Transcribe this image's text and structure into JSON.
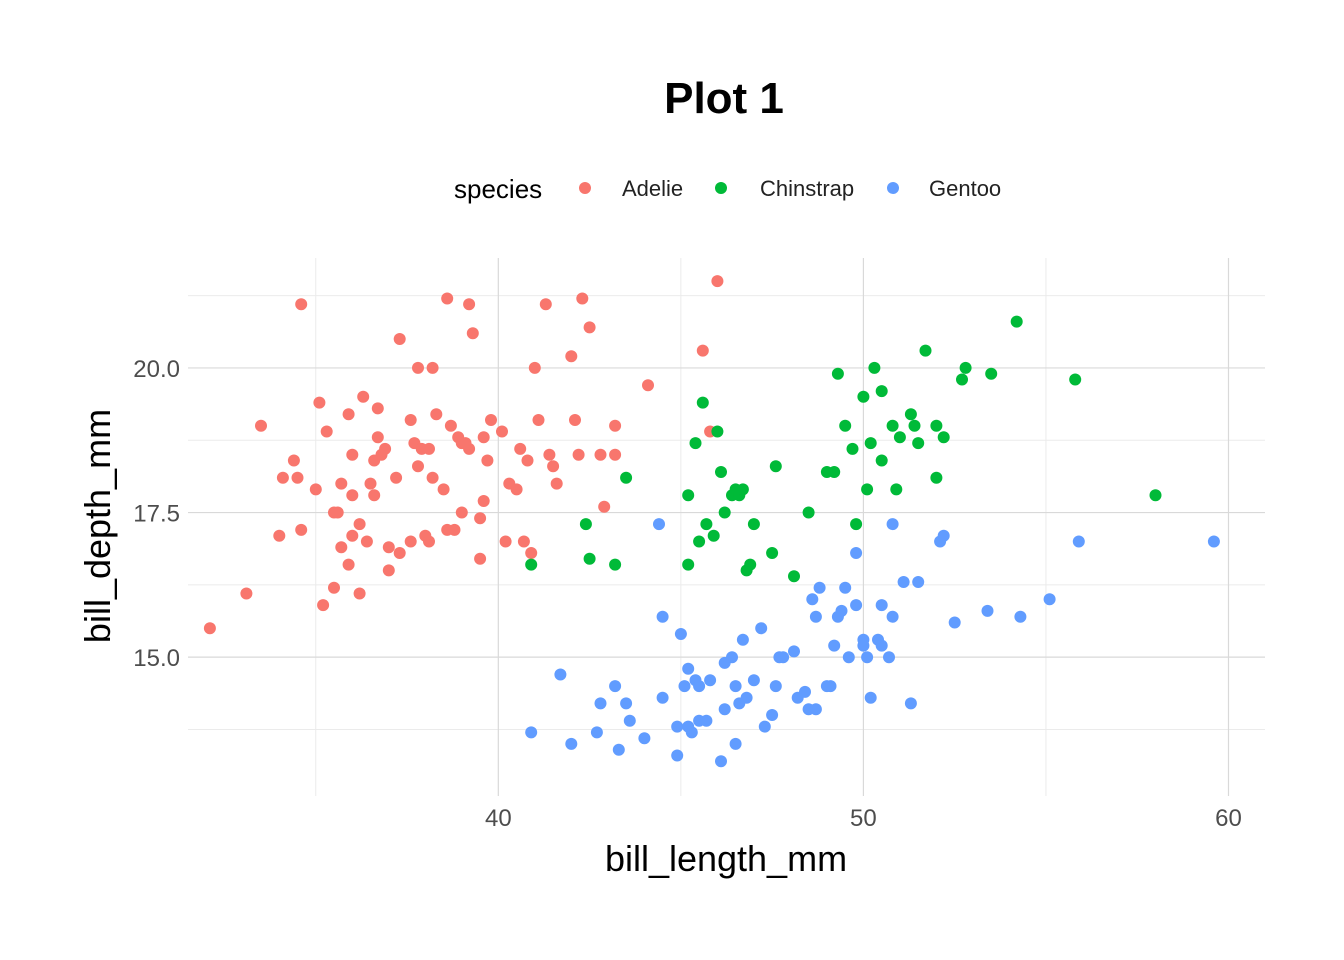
{
  "chart_data": {
    "type": "scatter",
    "title": "Plot 1",
    "xlabel": "bill_length_mm",
    "ylabel": "bill_depth_mm",
    "xlim": [
      31.5,
      61.0
    ],
    "ylim": [
      12.6,
      21.9
    ],
    "x_ticks": [
      40,
      50,
      60
    ],
    "y_ticks": [
      15.0,
      17.5,
      20.0
    ],
    "x_tick_labels": [
      "40",
      "50",
      "60"
    ],
    "y_tick_labels": [
      "15.0",
      "17.5",
      "20.0"
    ],
    "grid": true,
    "legend": {
      "title": "species",
      "position": "top"
    },
    "series": [
      {
        "name": "Adelie",
        "color": "#F8766D",
        "points": [
          [
            32.1,
            15.5
          ],
          [
            33.1,
            16.1
          ],
          [
            33.5,
            19.0
          ],
          [
            34.0,
            17.1
          ],
          [
            34.1,
            18.1
          ],
          [
            34.4,
            18.4
          ],
          [
            34.5,
            18.1
          ],
          [
            34.6,
            21.1
          ],
          [
            34.6,
            17.2
          ],
          [
            35.0,
            17.9
          ],
          [
            35.1,
            19.4
          ],
          [
            35.2,
            15.9
          ],
          [
            35.3,
            18.9
          ],
          [
            35.5,
            17.5
          ],
          [
            35.5,
            16.2
          ],
          [
            35.6,
            17.5
          ],
          [
            35.7,
            16.9
          ],
          [
            35.7,
            18.0
          ],
          [
            35.9,
            19.2
          ],
          [
            35.9,
            16.6
          ],
          [
            36.0,
            17.1
          ],
          [
            36.0,
            17.8
          ],
          [
            36.0,
            18.5
          ],
          [
            36.2,
            16.1
          ],
          [
            36.2,
            17.3
          ],
          [
            36.3,
            19.5
          ],
          [
            36.4,
            17.0
          ],
          [
            36.5,
            18.0
          ],
          [
            36.6,
            17.8
          ],
          [
            36.7,
            18.8
          ],
          [
            36.7,
            19.3
          ],
          [
            36.6,
            18.4
          ],
          [
            36.8,
            18.5
          ],
          [
            36.9,
            18.6
          ],
          [
            37.0,
            16.5
          ],
          [
            37.0,
            16.9
          ],
          [
            37.2,
            18.1
          ],
          [
            37.3,
            16.8
          ],
          [
            37.3,
            20.5
          ],
          [
            37.6,
            17.0
          ],
          [
            37.6,
            19.1
          ],
          [
            37.7,
            18.7
          ],
          [
            37.8,
            18.3
          ],
          [
            37.8,
            20.0
          ],
          [
            37.9,
            18.6
          ],
          [
            38.0,
            17.1
          ],
          [
            38.1,
            18.6
          ],
          [
            38.1,
            17.0
          ],
          [
            38.2,
            18.1
          ],
          [
            38.2,
            20.0
          ],
          [
            38.3,
            19.2
          ],
          [
            38.5,
            17.9
          ],
          [
            38.6,
            17.2
          ],
          [
            38.6,
            21.2
          ],
          [
            38.7,
            19.0
          ],
          [
            38.8,
            17.2
          ],
          [
            38.9,
            18.8
          ],
          [
            39.0,
            17.5
          ],
          [
            39.0,
            18.7
          ],
          [
            39.1,
            18.7
          ],
          [
            39.2,
            18.6
          ],
          [
            39.2,
            21.1
          ],
          [
            39.3,
            20.6
          ],
          [
            39.5,
            17.4
          ],
          [
            39.5,
            16.7
          ],
          [
            39.6,
            17.7
          ],
          [
            39.6,
            18.8
          ],
          [
            39.7,
            18.4
          ],
          [
            39.8,
            19.1
          ],
          [
            40.1,
            18.9
          ],
          [
            40.2,
            17.0
          ],
          [
            40.3,
            18.0
          ],
          [
            40.5,
            17.9
          ],
          [
            40.6,
            18.6
          ],
          [
            40.7,
            17.0
          ],
          [
            40.8,
            18.4
          ],
          [
            40.9,
            16.8
          ],
          [
            41.0,
            20.0
          ],
          [
            41.1,
            19.1
          ],
          [
            41.3,
            21.1
          ],
          [
            41.4,
            18.5
          ],
          [
            41.5,
            18.3
          ],
          [
            41.6,
            18.0
          ],
          [
            42.0,
            20.2
          ],
          [
            42.1,
            19.1
          ],
          [
            42.2,
            18.5
          ],
          [
            42.3,
            21.2
          ],
          [
            42.5,
            20.7
          ],
          [
            42.8,
            18.5
          ],
          [
            42.9,
            17.6
          ],
          [
            43.2,
            18.5
          ],
          [
            43.2,
            19.0
          ],
          [
            44.1,
            19.7
          ],
          [
            45.6,
            20.3
          ],
          [
            45.8,
            18.9
          ],
          [
            46.0,
            21.5
          ]
        ]
      },
      {
        "name": "Chinstrap",
        "color": "#00BA38",
        "points": [
          [
            40.9,
            16.6
          ],
          [
            42.4,
            17.3
          ],
          [
            42.5,
            16.7
          ],
          [
            43.2,
            16.6
          ],
          [
            43.5,
            18.1
          ],
          [
            45.2,
            17.8
          ],
          [
            45.2,
            16.6
          ],
          [
            45.4,
            18.7
          ],
          [
            45.5,
            17.0
          ],
          [
            45.6,
            19.4
          ],
          [
            45.7,
            17.3
          ],
          [
            45.9,
            17.1
          ],
          [
            46.0,
            18.9
          ],
          [
            46.1,
            18.2
          ],
          [
            46.2,
            17.5
          ],
          [
            46.4,
            17.8
          ],
          [
            46.5,
            17.9
          ],
          [
            46.6,
            17.8
          ],
          [
            46.7,
            17.9
          ],
          [
            46.8,
            16.5
          ],
          [
            46.9,
            16.6
          ],
          [
            47.0,
            17.3
          ],
          [
            47.5,
            16.8
          ],
          [
            47.6,
            18.3
          ],
          [
            48.1,
            16.4
          ],
          [
            48.5,
            17.5
          ],
          [
            49.0,
            18.2
          ],
          [
            49.2,
            18.2
          ],
          [
            49.3,
            19.9
          ],
          [
            49.5,
            19.0
          ],
          [
            49.7,
            18.6
          ],
          [
            49.8,
            17.3
          ],
          [
            50.0,
            19.5
          ],
          [
            50.1,
            17.9
          ],
          [
            50.2,
            18.7
          ],
          [
            50.3,
            20.0
          ],
          [
            50.5,
            19.6
          ],
          [
            50.5,
            18.4
          ],
          [
            50.8,
            19.0
          ],
          [
            50.9,
            17.9
          ],
          [
            51.0,
            18.8
          ],
          [
            51.3,
            19.2
          ],
          [
            51.4,
            19.0
          ],
          [
            51.5,
            18.7
          ],
          [
            51.7,
            20.3
          ],
          [
            52.0,
            18.1
          ],
          [
            52.0,
            19.0
          ],
          [
            52.2,
            18.8
          ],
          [
            52.7,
            19.8
          ],
          [
            52.8,
            20.0
          ],
          [
            53.5,
            19.9
          ],
          [
            54.2,
            20.8
          ],
          [
            55.8,
            19.8
          ],
          [
            58.0,
            17.8
          ]
        ]
      },
      {
        "name": "Gentoo",
        "color": "#619CFF",
        "points": [
          [
            40.9,
            13.7
          ],
          [
            41.7,
            14.7
          ],
          [
            42.0,
            13.5
          ],
          [
            42.7,
            13.7
          ],
          [
            42.8,
            14.2
          ],
          [
            43.2,
            14.5
          ],
          [
            43.5,
            14.2
          ],
          [
            43.3,
            13.4
          ],
          [
            43.6,
            13.9
          ],
          [
            44.0,
            13.6
          ],
          [
            44.4,
            17.3
          ],
          [
            44.5,
            15.7
          ],
          [
            44.5,
            14.3
          ],
          [
            44.9,
            13.3
          ],
          [
            44.9,
            13.8
          ],
          [
            45.0,
            15.4
          ],
          [
            45.1,
            14.5
          ],
          [
            45.2,
            13.8
          ],
          [
            45.2,
            14.8
          ],
          [
            45.3,
            13.7
          ],
          [
            45.4,
            14.6
          ],
          [
            45.5,
            13.9
          ],
          [
            45.5,
            14.5
          ],
          [
            45.7,
            13.9
          ],
          [
            45.8,
            14.6
          ],
          [
            46.1,
            13.2
          ],
          [
            46.2,
            14.1
          ],
          [
            46.2,
            14.9
          ],
          [
            46.4,
            15.0
          ],
          [
            46.5,
            14.5
          ],
          [
            46.5,
            13.5
          ],
          [
            46.6,
            14.2
          ],
          [
            46.7,
            15.3
          ],
          [
            46.8,
            14.3
          ],
          [
            47.0,
            14.6
          ],
          [
            47.2,
            15.5
          ],
          [
            47.3,
            13.8
          ],
          [
            47.5,
            14.0
          ],
          [
            47.6,
            14.5
          ],
          [
            47.7,
            15.0
          ],
          [
            47.8,
            15.0
          ],
          [
            48.1,
            15.1
          ],
          [
            48.2,
            14.3
          ],
          [
            48.4,
            14.4
          ],
          [
            48.5,
            14.1
          ],
          [
            48.6,
            16.0
          ],
          [
            48.7,
            14.1
          ],
          [
            48.7,
            15.7
          ],
          [
            48.8,
            16.2
          ],
          [
            49.0,
            14.5
          ],
          [
            49.1,
            14.5
          ],
          [
            49.2,
            15.2
          ],
          [
            49.3,
            15.7
          ],
          [
            49.4,
            15.8
          ],
          [
            49.5,
            16.2
          ],
          [
            49.6,
            15.0
          ],
          [
            49.8,
            15.9
          ],
          [
            49.8,
            16.8
          ],
          [
            50.0,
            15.2
          ],
          [
            50.0,
            15.3
          ],
          [
            50.1,
            15.0
          ],
          [
            50.2,
            14.3
          ],
          [
            50.4,
            15.3
          ],
          [
            50.5,
            15.2
          ],
          [
            50.5,
            15.9
          ],
          [
            50.7,
            15.0
          ],
          [
            50.8,
            15.7
          ],
          [
            50.8,
            17.3
          ],
          [
            51.1,
            16.3
          ],
          [
            51.3,
            14.2
          ],
          [
            51.5,
            16.3
          ],
          [
            52.1,
            17.0
          ],
          [
            52.2,
            17.1
          ],
          [
            52.5,
            15.6
          ],
          [
            53.4,
            15.8
          ],
          [
            54.3,
            15.7
          ],
          [
            55.1,
            16.0
          ],
          [
            55.9,
            17.0
          ],
          [
            59.6,
            17.0
          ]
        ]
      }
    ]
  }
}
